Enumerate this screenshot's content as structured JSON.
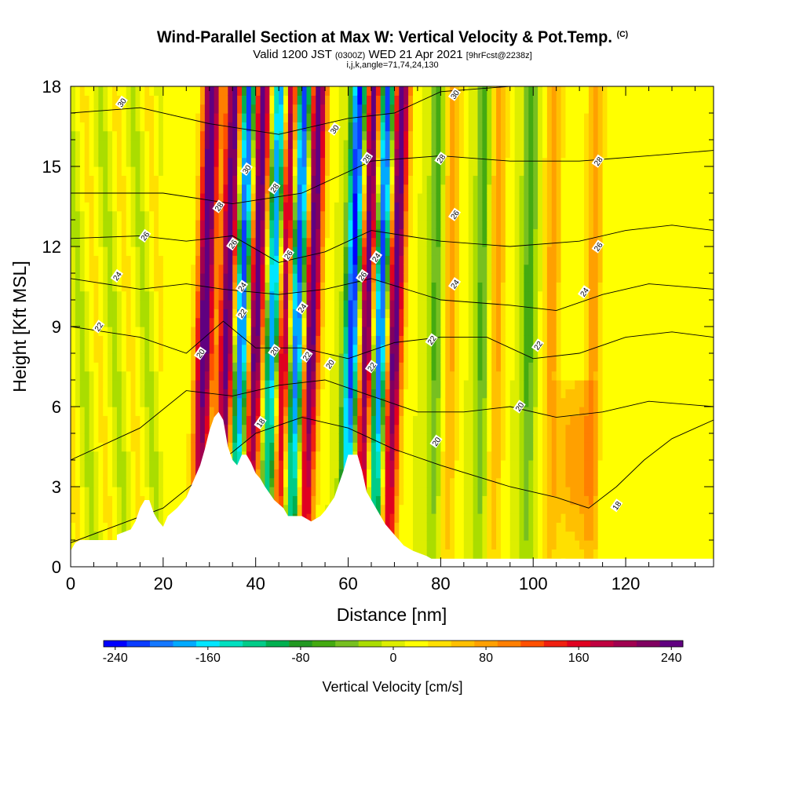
{
  "header": {
    "title": "Wind-Parallel Section at Max W: Vertical Velocity & Pot.Temp.",
    "copyright": "(C)",
    "valid_a": "Valid 1200 JST",
    "valid_b": "(0300Z)",
    "valid_c": "WED 21 Apr 2021",
    "valid_d": "[9hrFcst@2238z]",
    "params": "i,j,k,angle=71,74,24,130"
  },
  "colorbar": {
    "label": "Vertical Velocity [cm/s]",
    "tick_labels": [
      "-240",
      "-160",
      "-80",
      "0",
      "80",
      "160",
      "240"
    ],
    "range": [
      -250,
      250
    ],
    "colors": [
      "#0000ff",
      "#0a3cff",
      "#1478ff",
      "#00aaff",
      "#00e6ff",
      "#00e0c0",
      "#00cc88",
      "#00b050",
      "#229922",
      "#44aa11",
      "#77c020",
      "#aadd00",
      "#ddee00",
      "#ffff00",
      "#ffe000",
      "#ffc000",
      "#ffa000",
      "#ff7f00",
      "#ff5000",
      "#f02010",
      "#e00020",
      "#c00040",
      "#a00050",
      "#800060",
      "#600080"
    ]
  },
  "chart_data": {
    "type": "heatmap",
    "xlabel": "Distance [nm]",
    "ylabel": "Height [Kft MSL]",
    "xlim": [
      0,
      139
    ],
    "ylim": [
      0,
      18
    ],
    "x_ticks": [
      0,
      20,
      40,
      60,
      80,
      100,
      120
    ],
    "y_ticks": [
      0,
      3,
      6,
      9,
      12,
      15,
      18
    ],
    "fill_variable": "Vertical Velocity [cm/s]",
    "contour_variable": "Potential Temperature [C]",
    "dominant_upward_bands_x": [
      29,
      34,
      40,
      46,
      52,
      64,
      70,
      82,
      92,
      104,
      113
    ],
    "dominant_downward_bands_x": [
      37,
      44,
      49,
      61,
      67,
      79,
      89,
      99
    ],
    "velocity_extremes_cm_s": [
      -240,
      240
    ],
    "terrain_profile": [
      [
        0,
        0.6
      ],
      [
        1,
        0.9
      ],
      [
        2,
        1.0
      ],
      [
        10,
        1.0
      ],
      [
        10,
        1.2
      ],
      [
        13,
        1.4
      ],
      [
        14,
        1.7
      ],
      [
        15,
        2.2
      ],
      [
        16,
        2.5
      ],
      [
        17,
        2.5
      ],
      [
        18,
        2.0
      ],
      [
        19,
        1.7
      ],
      [
        20,
        1.5
      ],
      [
        21,
        1.9
      ],
      [
        23,
        2.2
      ],
      [
        25,
        2.6
      ],
      [
        26,
        3.0
      ],
      [
        27,
        3.4
      ],
      [
        28,
        3.8
      ],
      [
        29,
        4.4
      ],
      [
        30,
        5.1
      ],
      [
        31,
        5.6
      ],
      [
        32,
        5.8
      ],
      [
        33,
        5.5
      ],
      [
        34,
        4.5
      ],
      [
        35,
        4.0
      ],
      [
        36,
        3.8
      ],
      [
        37,
        4.2
      ],
      [
        38,
        4.2
      ],
      [
        39,
        3.9
      ],
      [
        40,
        3.5
      ],
      [
        41,
        3.3
      ],
      [
        42,
        3.0
      ],
      [
        44,
        2.5
      ],
      [
        46,
        2.2
      ],
      [
        47,
        1.9
      ],
      [
        50,
        1.9
      ],
      [
        52,
        1.7
      ],
      [
        54,
        1.9
      ],
      [
        55,
        2.1
      ],
      [
        57,
        2.6
      ],
      [
        59,
        3.6
      ],
      [
        60,
        4.2
      ],
      [
        62,
        4.2
      ],
      [
        63,
        3.6
      ],
      [
        64,
        2.8
      ],
      [
        66,
        2.2
      ],
      [
        68,
        1.6
      ],
      [
        70,
        1.2
      ],
      [
        72,
        0.8
      ],
      [
        74,
        0.6
      ],
      [
        77,
        0.4
      ],
      [
        78,
        0.3
      ],
      [
        139,
        0.3
      ]
    ],
    "theta_contours": [
      {
        "label": "18",
        "points": [
          [
            0,
            0.9
          ],
          [
            20,
            2.2
          ],
          [
            40,
            5.0
          ],
          [
            50,
            5.6
          ],
          [
            60,
            5.2
          ],
          [
            70,
            4.4
          ],
          [
            80,
            3.8
          ],
          [
            95,
            3.0
          ],
          [
            105,
            2.6
          ],
          [
            112,
            2.2
          ],
          [
            118,
            3.0
          ],
          [
            124,
            4.0
          ],
          [
            130,
            4.8
          ],
          [
            139,
            5.5
          ]
        ]
      },
      {
        "label": "20",
        "points": [
          [
            0,
            4.0
          ],
          [
            15,
            5.2
          ],
          [
            25,
            6.6
          ],
          [
            35,
            6.4
          ],
          [
            45,
            6.8
          ],
          [
            55,
            7.0
          ],
          [
            65,
            6.4
          ],
          [
            75,
            5.8
          ],
          [
            85,
            5.8
          ],
          [
            95,
            6.0
          ],
          [
            105,
            5.6
          ],
          [
            115,
            5.8
          ],
          [
            125,
            6.2
          ],
          [
            139,
            6.0
          ]
        ]
      },
      {
        "label": "22",
        "points": [
          [
            0,
            9.0
          ],
          [
            15,
            8.6
          ],
          [
            25,
            8.0
          ],
          [
            33,
            9.2
          ],
          [
            40,
            8.2
          ],
          [
            50,
            8.2
          ],
          [
            60,
            7.8
          ],
          [
            70,
            8.4
          ],
          [
            80,
            8.6
          ],
          [
            90,
            8.6
          ],
          [
            100,
            7.8
          ],
          [
            110,
            8.0
          ],
          [
            120,
            8.6
          ],
          [
            130,
            8.8
          ],
          [
            139,
            8.6
          ]
        ]
      },
      {
        "label": "24",
        "points": [
          [
            0,
            10.8
          ],
          [
            15,
            10.4
          ],
          [
            25,
            10.6
          ],
          [
            33,
            10.4
          ],
          [
            45,
            10.2
          ],
          [
            55,
            10.4
          ],
          [
            65,
            10.8
          ],
          [
            80,
            10.0
          ],
          [
            95,
            9.8
          ],
          [
            105,
            9.6
          ],
          [
            115,
            10.2
          ],
          [
            125,
            10.6
          ],
          [
            139,
            10.4
          ]
        ]
      },
      {
        "label": "26",
        "points": [
          [
            0,
            12.3
          ],
          [
            15,
            12.4
          ],
          [
            25,
            12.2
          ],
          [
            35,
            12.4
          ],
          [
            45,
            11.4
          ],
          [
            55,
            11.8
          ],
          [
            65,
            12.6
          ],
          [
            80,
            12.2
          ],
          [
            95,
            12.0
          ],
          [
            110,
            12.2
          ],
          [
            120,
            12.6
          ],
          [
            130,
            12.8
          ],
          [
            139,
            12.6
          ]
        ]
      },
      {
        "label": "28",
        "points": [
          [
            0,
            14.0
          ],
          [
            20,
            14.0
          ],
          [
            35,
            13.6
          ],
          [
            50,
            14.0
          ],
          [
            65,
            15.2
          ],
          [
            80,
            15.4
          ],
          [
            95,
            15.2
          ],
          [
            110,
            15.2
          ],
          [
            125,
            15.4
          ],
          [
            139,
            15.6
          ]
        ]
      },
      {
        "label": "30",
        "points": [
          [
            0,
            17.0
          ],
          [
            15,
            17.2
          ],
          [
            30,
            16.6
          ],
          [
            45,
            16.2
          ],
          [
            60,
            16.8
          ],
          [
            70,
            17.0
          ],
          [
            80,
            17.8
          ],
          [
            95,
            18.0
          ],
          [
            110,
            18.1
          ],
          [
            139,
            18.3
          ]
        ]
      }
    ],
    "contour_labels_shown": [
      {
        "text": "30",
        "x": 11,
        "y": 17.4
      },
      {
        "text": "30",
        "x": 83,
        "y": 17.7
      },
      {
        "text": "30",
        "x": 57,
        "y": 16.4
      },
      {
        "text": "30",
        "x": 38,
        "y": 14.9
      },
      {
        "text": "28",
        "x": 32,
        "y": 13.5
      },
      {
        "text": "28",
        "x": 64,
        "y": 15.3
      },
      {
        "text": "28",
        "x": 80,
        "y": 15.3
      },
      {
        "text": "28",
        "x": 114,
        "y": 15.2
      },
      {
        "text": "28",
        "x": 44,
        "y": 14.2
      },
      {
        "text": "26",
        "x": 16,
        "y": 12.4
      },
      {
        "text": "26",
        "x": 35,
        "y": 12.1
      },
      {
        "text": "26",
        "x": 47,
        "y": 11.7
      },
      {
        "text": "26",
        "x": 83,
        "y": 13.2
      },
      {
        "text": "26",
        "x": 114,
        "y": 12.0
      },
      {
        "text": "26",
        "x": 63,
        "y": 10.9
      },
      {
        "text": "24",
        "x": 10,
        "y": 10.9
      },
      {
        "text": "24",
        "x": 37,
        "y": 10.5
      },
      {
        "text": "24",
        "x": 50,
        "y": 9.7
      },
      {
        "text": "24",
        "x": 66,
        "y": 11.6
      },
      {
        "text": "24",
        "x": 83,
        "y": 10.6
      },
      {
        "text": "24",
        "x": 111,
        "y": 10.3
      },
      {
        "text": "22",
        "x": 6,
        "y": 9.0
      },
      {
        "text": "22",
        "x": 37,
        "y": 9.5
      },
      {
        "text": "22",
        "x": 51,
        "y": 7.9
      },
      {
        "text": "22",
        "x": 78,
        "y": 8.5
      },
      {
        "text": "22",
        "x": 101,
        "y": 8.3
      },
      {
        "text": "22",
        "x": 65,
        "y": 7.5
      },
      {
        "text": "20",
        "x": 28,
        "y": 8.0
      },
      {
        "text": "20",
        "x": 44,
        "y": 8.1
      },
      {
        "text": "20",
        "x": 56,
        "y": 7.6
      },
      {
        "text": "20",
        "x": 97,
        "y": 6.0
      },
      {
        "text": "18",
        "x": 41,
        "y": 5.4
      },
      {
        "text": "20",
        "x": 79,
        "y": 4.7
      },
      {
        "text": "18",
        "x": 118,
        "y": 2.3
      }
    ]
  }
}
